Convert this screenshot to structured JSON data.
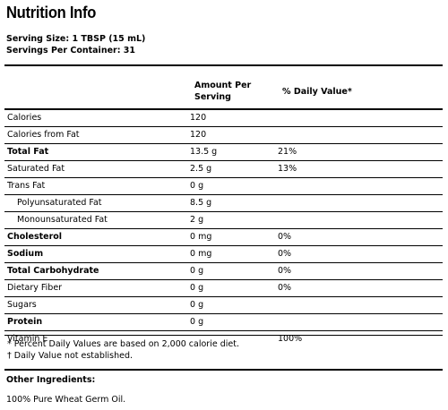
{
  "title": "Nutrition Info",
  "serving_size": "Serving Size: 1 TBSP (15 mL)",
  "servings_per_container": "Servings Per Container: 31",
  "table": {
    "col_amount": "Amount Per Serving",
    "col_dv": "% Daily Value*",
    "rows": [
      {
        "name": "Calories",
        "amount": "120",
        "dv": "",
        "bold": false,
        "indent": false
      },
      {
        "name": "Calories from Fat",
        "amount": "120",
        "dv": "",
        "bold": false,
        "indent": false
      },
      {
        "name": "Total Fat",
        "amount": "13.5 g",
        "dv": "21%",
        "bold": true,
        "indent": false
      },
      {
        "name": "Saturated Fat",
        "amount": "2.5 g",
        "dv": "13%",
        "bold": false,
        "indent": false
      },
      {
        "name": "Trans Fat",
        "amount": "0 g",
        "dv": "",
        "bold": false,
        "indent": false
      },
      {
        "name": "Polyunsaturated Fat",
        "amount": "8.5 g",
        "dv": "",
        "bold": false,
        "indent": true
      },
      {
        "name": "Monounsaturated Fat",
        "amount": "2 g",
        "dv": "",
        "bold": false,
        "indent": true
      },
      {
        "name": "Cholesterol",
        "amount": "0 mg",
        "dv": "0%",
        "bold": true,
        "indent": false
      },
      {
        "name": "Sodium",
        "amount": "0 mg",
        "dv": "0%",
        "bold": true,
        "indent": false
      },
      {
        "name": "Total Carbohydrate",
        "amount": "0 g",
        "dv": "0%",
        "bold": true,
        "indent": false
      },
      {
        "name": "Dietary Fiber",
        "amount": "0 g",
        "dv": "0%",
        "bold": false,
        "indent": false
      },
      {
        "name": "Sugars",
        "amount": "0 g",
        "dv": "",
        "bold": false,
        "indent": false
      },
      {
        "name": "Protein",
        "amount": "0 g",
        "dv": "",
        "bold": true,
        "indent": false
      },
      {
        "name": "Vitamin E",
        "amount": "",
        "dv": "100%",
        "bold": false,
        "indent": false
      }
    ]
  },
  "footnotes": [
    "* Percent Daily Values are based on 2,000 calorie diet.",
    "† Daily Value not established."
  ],
  "other_ingredients": {
    "label": "Other Ingredients:",
    "text": "100% Pure Wheat Germ Oil."
  }
}
